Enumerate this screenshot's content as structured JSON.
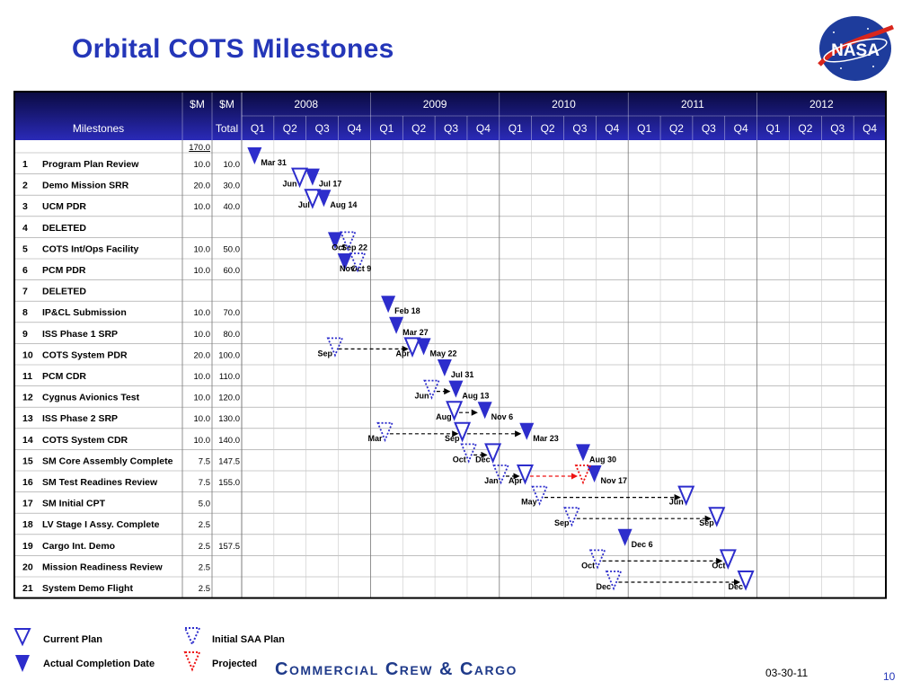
{
  "title": "Orbital COTS Milestones",
  "logo_text": "NASA",
  "header": {
    "col_m1": "$M",
    "col_m2": "$M",
    "milestones_label": "Milestones",
    "total_label": "Total",
    "years": [
      "2008",
      "2009",
      "2010",
      "2011",
      "2012"
    ],
    "quarters": [
      "Q1",
      "Q2",
      "Q3",
      "Q4"
    ]
  },
  "total_row_value": "170.0",
  "rows": [
    {
      "num": "1",
      "name": "Program Plan Review",
      "m": "10.0",
      "total": "10.0"
    },
    {
      "num": "2",
      "name": "Demo Mission SRR",
      "m": "20.0",
      "total": "30.0"
    },
    {
      "num": "3",
      "name": "UCM PDR",
      "m": "10.0",
      "total": "40.0"
    },
    {
      "num": "4",
      "name": "DELETED",
      "m": "",
      "total": ""
    },
    {
      "num": "5",
      "name": "COTS Int/Ops Facility",
      "m": "10.0",
      "total": "50.0"
    },
    {
      "num": "6",
      "name": "PCM PDR",
      "m": "10.0",
      "total": "60.0"
    },
    {
      "num": "7",
      "name": "DELETED",
      "m": "",
      "total": ""
    },
    {
      "num": "8",
      "name": "IP&CL Submission",
      "m": "10.0",
      "total": "70.0"
    },
    {
      "num": "9",
      "name": "ISS Phase 1 SRP",
      "m": "10.0",
      "total": "80.0"
    },
    {
      "num": "10",
      "name": "COTS System PDR",
      "m": "20.0",
      "total": "100.0"
    },
    {
      "num": "11",
      "name": "PCM CDR",
      "m": "10.0",
      "total": "110.0"
    },
    {
      "num": "12",
      "name": "Cygnus Avionics Test",
      "m": "10.0",
      "total": "120.0"
    },
    {
      "num": "13",
      "name": "ISS Phase 2 SRP",
      "m": "10.0",
      "total": "130.0"
    },
    {
      "num": "14",
      "name": "COTS System CDR",
      "m": "10.0",
      "total": "140.0"
    },
    {
      "num": "15",
      "name": "SM Core Assembly Complete",
      "m": "7.5",
      "total": "147.5"
    },
    {
      "num": "16",
      "name": "SM Test Readines Review",
      "m": "7.5",
      "total": "155.0"
    },
    {
      "num": "17",
      "name": "SM Initial CPT",
      "m": "5.0",
      "total": ""
    },
    {
      "num": "18",
      "name": "LV Stage I Assy. Complete",
      "m": "2.5",
      "total": ""
    },
    {
      "num": "19",
      "name": "Cargo Int. Demo",
      "m": "2.5",
      "total": "157.5"
    },
    {
      "num": "20",
      "name": "Mission Readiness Review",
      "m": "2.5",
      "total": ""
    },
    {
      "num": "21",
      "name": "System Demo Flight",
      "m": "2.5",
      "total": ""
    }
  ],
  "markers": [
    {
      "row": 1,
      "q": 0.4,
      "type": "actual",
      "label": "Mar 31"
    },
    {
      "row": 2,
      "q": 1.8,
      "type": "current",
      "label": "Jun"
    },
    {
      "row": 2,
      "q": 2.2,
      "type": "actual",
      "label": "Jul 17"
    },
    {
      "row": 3,
      "q": 2.2,
      "type": "current",
      "label": "Jul"
    },
    {
      "row": 3,
      "q": 2.55,
      "type": "actual",
      "label": "Aug 14"
    },
    {
      "row": 5,
      "q": 2.9,
      "type": "actual",
      "label": "Sep 22"
    },
    {
      "row": 5,
      "q": 3.3,
      "type": "initial",
      "label": "Oct"
    },
    {
      "row": 6,
      "q": 3.2,
      "type": "actual",
      "label": "Oct 9"
    },
    {
      "row": 6,
      "q": 3.6,
      "type": "initial",
      "label": "Nov"
    },
    {
      "row": 8,
      "q": 4.55,
      "type": "actual",
      "label": "Feb 18"
    },
    {
      "row": 9,
      "q": 4.8,
      "type": "actual",
      "label": "Mar 27"
    },
    {
      "row": 10,
      "q": 2.9,
      "type": "initial",
      "label": "Sep"
    },
    {
      "row": 10,
      "q": 5.3,
      "type": "current",
      "label": "Apr"
    },
    {
      "row": 10,
      "q": 5.65,
      "type": "actual",
      "label": "May 22"
    },
    {
      "row": 11,
      "q": 6.3,
      "type": "actual",
      "label": "Jul 31"
    },
    {
      "row": 12,
      "q": 5.9,
      "type": "initial",
      "label": "Jun"
    },
    {
      "row": 12,
      "q": 6.65,
      "type": "actual",
      "label": "Aug 13"
    },
    {
      "row": 13,
      "q": 6.6,
      "type": "current",
      "label": "Aug"
    },
    {
      "row": 13,
      "q": 7.55,
      "type": "actual",
      "label": "Nov 6"
    },
    {
      "row": 14,
      "q": 4.45,
      "type": "initial",
      "label": "Mar"
    },
    {
      "row": 14,
      "q": 6.85,
      "type": "current",
      "label": "Sep"
    },
    {
      "row": 14,
      "q": 8.85,
      "type": "actual",
      "label": "Mar 23"
    },
    {
      "row": 15,
      "q": 7.05,
      "type": "initial",
      "label": "Oct"
    },
    {
      "row": 15,
      "q": 7.8,
      "type": "current",
      "label": "Dec"
    },
    {
      "row": 15,
      "q": 10.6,
      "type": "actual",
      "label": "Aug 30"
    },
    {
      "row": 16,
      "q": 8.05,
      "type": "initial",
      "label": "Jan"
    },
    {
      "row": 16,
      "q": 8.8,
      "type": "current",
      "label": "Apr"
    },
    {
      "row": 16,
      "q": 10.95,
      "type": "actual",
      "label": "Nov 17"
    },
    {
      "row": 16,
      "q": 10.6,
      "type": "projected",
      "label": ""
    },
    {
      "row": 17,
      "q": 9.25,
      "type": "initial",
      "label": "May"
    },
    {
      "row": 17,
      "q": 13.8,
      "type": "current",
      "label": "Jun"
    },
    {
      "row": 18,
      "q": 10.25,
      "type": "initial",
      "label": "Sep"
    },
    {
      "row": 18,
      "q": 14.75,
      "type": "current",
      "label": "Sep"
    },
    {
      "row": 19,
      "q": 11.9,
      "type": "actual",
      "label": "Dec 6"
    },
    {
      "row": 20,
      "q": 11.05,
      "type": "initial",
      "label": "Oct"
    },
    {
      "row": 20,
      "q": 15.1,
      "type": "current",
      "label": "Oct"
    },
    {
      "row": 21,
      "q": 11.55,
      "type": "initial",
      "label": "Dec"
    },
    {
      "row": 21,
      "q": 15.65,
      "type": "current",
      "label": "Dec"
    }
  ],
  "arrows": [
    {
      "row": 10,
      "from": 3.0,
      "to": 5.15,
      "color": "#000000"
    },
    {
      "row": 12,
      "from": 6.05,
      "to": 6.45,
      "color": "#000000"
    },
    {
      "row": 13,
      "from": 6.75,
      "to": 7.3,
      "color": "#000000"
    },
    {
      "row": 14,
      "from": 4.6,
      "to": 6.7,
      "color": "#000000"
    },
    {
      "row": 14,
      "from": 7.0,
      "to": 8.65,
      "color": "#000000"
    },
    {
      "row": 15,
      "from": 7.2,
      "to": 7.6,
      "color": "#000000"
    },
    {
      "row": 16,
      "from": 8.2,
      "to": 8.6,
      "color": "#000000"
    },
    {
      "row": 16,
      "from": 8.95,
      "to": 10.4,
      "color": "#ee1111"
    },
    {
      "row": 17,
      "from": 9.4,
      "to": 13.6,
      "color": "#000000"
    },
    {
      "row": 18,
      "from": 10.4,
      "to": 14.55,
      "color": "#000000"
    },
    {
      "row": 20,
      "from": 11.2,
      "to": 14.9,
      "color": "#000000"
    },
    {
      "row": 21,
      "from": 11.7,
      "to": 15.45,
      "color": "#000000"
    }
  ],
  "legend": {
    "current": "Current Plan",
    "actual": "Actual Completion Date",
    "initial": "Initial SAA Plan",
    "projected": "Projected"
  },
  "colors": {
    "header_dark": "#0a0a40",
    "header_blue": "#2a2ab8",
    "marker_blue": "#2d2dcc",
    "projected_red": "#ee1111",
    "title_blue": "#2436b8"
  },
  "footer": {
    "banner": "Commercial Crew & Cargo",
    "date": "03-30-11",
    "page": "10"
  }
}
